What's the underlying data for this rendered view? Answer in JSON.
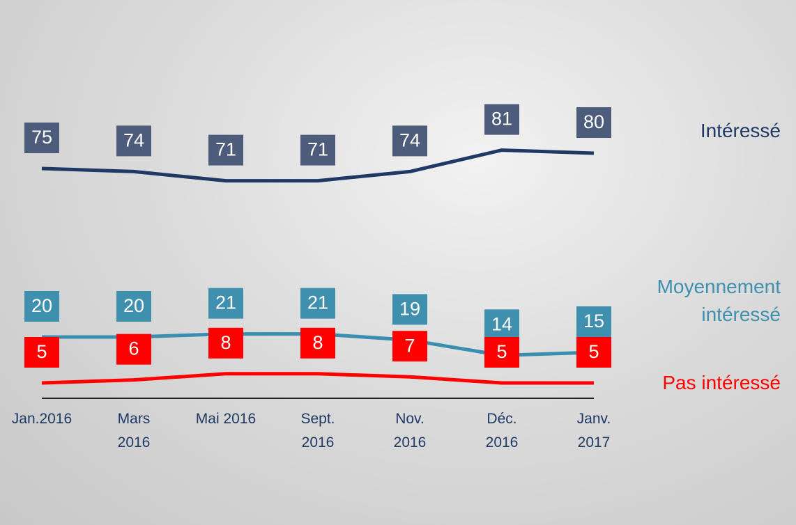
{
  "chart_data": {
    "type": "line",
    "categories": [
      "Jan.2016",
      "Mars\n2016",
      "Mai 2016",
      "Sept.\n2016",
      "Nov.\n2016",
      "Déc.\n2016",
      "Janv.\n2017"
    ],
    "series": [
      {
        "name": "Intéressé",
        "color": "#1f3864",
        "label_color": "#4d5c7a",
        "values": [
          75,
          74,
          71,
          71,
          74,
          81,
          80
        ]
      },
      {
        "name": "Moyennement\nintéressé",
        "color": "#3a8fb0",
        "label_color": "#3f8fae",
        "values": [
          20,
          20,
          21,
          21,
          19,
          14,
          15
        ]
      },
      {
        "name": "Pas intéressé",
        "color": "#ff0000",
        "label_color": "#ff0000",
        "values": [
          5,
          6,
          8,
          8,
          7,
          5,
          5
        ]
      }
    ]
  }
}
